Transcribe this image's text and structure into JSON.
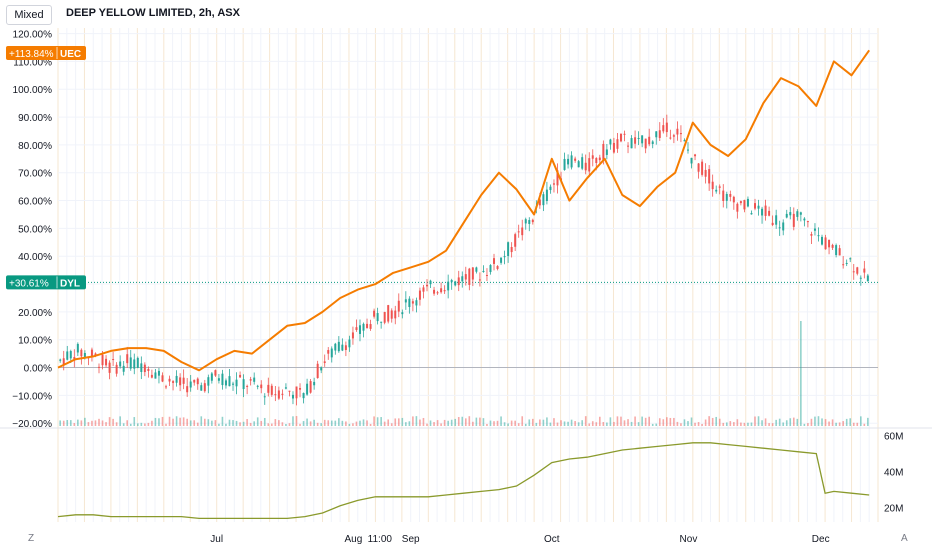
{
  "header": {
    "mode_label": "Mixed",
    "title": "DEEP YELLOW LIMITED, 2h, ASX"
  },
  "corners": {
    "left": "Z",
    "right": "A"
  },
  "colors": {
    "up": "#26a69a",
    "down": "#ef5350",
    "uec": "#f57c00",
    "dyl_label": "#089981",
    "volume_ma": "#8a9a2c",
    "grid": "#f0f3fa",
    "baseline": "#b2b5be"
  },
  "chart_data": [
    {
      "type": "line",
      "name": "price",
      "y_axis": {
        "ticks": [
          120,
          110,
          100,
          90,
          80,
          70,
          60,
          50,
          40,
          30,
          20,
          10,
          0,
          -10,
          -20
        ],
        "tick_labels": [
          "120.00%",
          "110.00%",
          "100.00%",
          "90.00%",
          "80.00%",
          "70.00%",
          "60.00%",
          "50.00%",
          "40.00%",
          "30.00%",
          "20.00%",
          "10.00%",
          "0.00%",
          "−10.00%",
          "−20.00%"
        ],
        "ylim": [
          -21,
          122
        ]
      },
      "x_axis": {
        "tick_labels": [
          "Jul",
          "Aug",
          "11:00",
          "Sep",
          "Oct",
          "Nov",
          "Dec"
        ],
        "tick_days": [
          36,
          67,
          73,
          80,
          112,
          143,
          173
        ],
        "xlim": [
          0,
          186
        ]
      },
      "series": [
        {
          "name": "UEC",
          "label": "+113.84%",
          "last": 113.84,
          "x": [
            0,
            4,
            8,
            12,
            16,
            20,
            24,
            28,
            32,
            36,
            40,
            44,
            48,
            52,
            56,
            60,
            64,
            68,
            72,
            76,
            80,
            84,
            88,
            92,
            96,
            100,
            104,
            108,
            112,
            116,
            120,
            124,
            128,
            132,
            136,
            140,
            144,
            148,
            152,
            156,
            160,
            164,
            168,
            172,
            176,
            180,
            184
          ],
          "y": [
            0,
            3,
            4,
            6,
            7,
            7,
            6,
            2,
            -1,
            3,
            6,
            5,
            10,
            15,
            16,
            20,
            25,
            28,
            30,
            34,
            36,
            38,
            42,
            52,
            62,
            70,
            64,
            55,
            75,
            60,
            68,
            75,
            62,
            58,
            65,
            70,
            88,
            80,
            76,
            82,
            95,
            104,
            101,
            94,
            110,
            105,
            114
          ]
        },
        {
          "name": "DYL",
          "label": "+30.61%",
          "last": 30.61,
          "x": [
            0,
            4,
            8,
            12,
            16,
            20,
            24,
            28,
            32,
            36,
            40,
            44,
            48,
            52,
            56,
            60,
            64,
            68,
            72,
            76,
            80,
            84,
            88,
            92,
            96,
            100,
            104,
            108,
            112,
            116,
            120,
            124,
            128,
            132,
            136,
            140,
            144,
            148,
            152,
            156,
            160,
            164,
            168,
            172,
            176,
            180,
            184
          ],
          "y": [
            2,
            6,
            4,
            0,
            2,
            1,
            -4,
            -6,
            -7,
            -3,
            -5,
            -6,
            -9,
            -8,
            -10,
            2,
            8,
            12,
            18,
            20,
            24,
            28,
            30,
            32,
            34,
            38,
            46,
            55,
            65,
            75,
            72,
            78,
            82,
            80,
            84,
            86,
            75,
            68,
            60,
            58,
            56,
            52,
            54,
            48,
            42,
            38,
            30.61
          ]
        }
      ]
    },
    {
      "type": "line",
      "name": "volume-ma",
      "y_axis": {
        "tick_labels": [
          "60M",
          "40M",
          "20M"
        ],
        "ticks": [
          60,
          40,
          20
        ],
        "ylim": [
          12,
          62
        ]
      },
      "x": [
        0,
        4,
        8,
        12,
        16,
        20,
        24,
        28,
        32,
        36,
        40,
        44,
        48,
        52,
        56,
        60,
        64,
        68,
        72,
        76,
        80,
        84,
        88,
        92,
        96,
        100,
        104,
        108,
        112,
        116,
        120,
        124,
        128,
        132,
        136,
        140,
        144,
        148,
        152,
        156,
        160,
        164,
        168,
        172,
        174,
        176,
        180,
        184
      ],
      "y": [
        15,
        16,
        16,
        15,
        15,
        15,
        15,
        15,
        14,
        14,
        14,
        14,
        14,
        14,
        15,
        17,
        21,
        24,
        26,
        26,
        26,
        26,
        27,
        28,
        29,
        30,
        32,
        38,
        45,
        47,
        48,
        50,
        52,
        53,
        54,
        55,
        56,
        56,
        55,
        54,
        53,
        52,
        51,
        50,
        28,
        29,
        28,
        27
      ]
    }
  ]
}
